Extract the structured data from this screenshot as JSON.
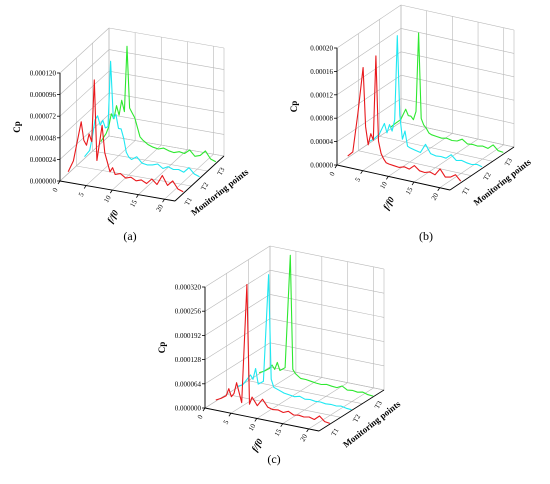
{
  "chart_data": [
    {
      "type": "line",
      "panel_label": "(a)",
      "ylabel": "Cp",
      "xlabel": "f/f0",
      "zlabel": "Monitoring points",
      "ylim": [
        0,
        0.00012
      ],
      "yticks": [
        "0.000000",
        "0.000024",
        "0.000048",
        "0.000072",
        "0.000096",
        "0.000120"
      ],
      "xticks": [
        "0",
        "5",
        "10",
        "15",
        "20"
      ],
      "zticks": [
        "T1",
        "T2",
        "T3"
      ],
      "colors": [
        "#e8181c",
        "#1ee8f2",
        "#2ee830"
      ],
      "series": [
        {
          "name": "T1",
          "x": [
            0,
            1,
            1.5,
            2,
            2.5,
            3,
            3.5,
            4,
            4.5,
            5,
            5.5,
            6,
            6.5,
            7,
            7.5,
            8,
            8.5,
            9,
            10,
            11,
            12,
            13,
            14,
            15,
            16,
            17,
            18,
            19,
            20,
            21,
            22
          ],
          "values": [
            2e-06,
            1.5e-05,
            3e-05,
            4.5e-05,
            6e-05,
            4e-05,
            3.5e-05,
            4.8e-05,
            4e-05,
            0.000109,
            2e-05,
            4e-05,
            6e-05,
            3e-05,
            2e-05,
            1e-05,
            1.5e-05,
            8e-06,
            1e-05,
            6e-06,
            8e-06,
            5e-06,
            7e-06,
            4e-06,
            1e-05,
            5e-06,
            1.6e-05,
            6e-06,
            1.2e-05,
            4e-06,
            2e-06
          ]
        },
        {
          "name": "T2",
          "x": [
            0,
            1,
            1.5,
            2,
            2.5,
            3,
            3.5,
            4,
            4.5,
            5,
            5.5,
            6,
            6.5,
            7,
            7.5,
            8,
            8.5,
            9,
            10,
            11,
            12,
            13,
            14,
            15,
            16,
            17,
            18,
            19,
            20,
            21,
            22
          ],
          "values": [
            2e-06,
            1e-05,
            2.5e-05,
            4.5e-05,
            5e-05,
            4e-05,
            4.6e-05,
            3.8e-05,
            4e-05,
            0.000113,
            5e-05,
            5.5e-05,
            4e-05,
            4e-05,
            3e-05,
            1.5e-05,
            1e-05,
            8e-06,
            1.2e-05,
            6e-06,
            5e-06,
            6e-06,
            8e-06,
            4e-06,
            7e-06,
            5e-06,
            6e-06,
            4e-06,
            1e-05,
            4e-06,
            2e-06
          ]
        },
        {
          "name": "T3",
          "x": [
            0,
            1,
            1.5,
            2,
            2.5,
            3,
            3.5,
            4,
            4.5,
            5,
            5.5,
            6,
            6.5,
            7,
            7.5,
            8,
            8.5,
            9,
            10,
            11,
            12,
            13,
            14,
            15,
            16,
            17,
            18,
            19,
            20,
            21,
            22
          ],
          "values": [
            2e-06,
            1.2e-05,
            2e-05,
            3.5e-05,
            3e-05,
            4.5e-05,
            3.5e-05,
            5.2e-05,
            4e-05,
            0.000113,
            4.5e-05,
            4e-05,
            3.5e-05,
            2.5e-05,
            1.5e-05,
            1.2e-05,
            1e-05,
            8e-06,
            6e-06,
            5e-06,
            7e-06,
            5e-06,
            4e-06,
            6e-06,
            5e-06,
            1e-05,
            4e-06,
            6e-06,
            1.2e-05,
            4e-06,
            2e-06
          ]
        }
      ]
    },
    {
      "type": "line",
      "panel_label": "(b)",
      "ylabel": "Cp",
      "xlabel": "f/f0",
      "zlabel": "Monitoring points",
      "ylim": [
        0,
        0.0002
      ],
      "yticks": [
        "0.00000",
        "0.00004",
        "0.00008",
        "0.00012",
        "0.00016",
        "0.00020"
      ],
      "xticks": [
        "0",
        "5",
        "10",
        "15",
        "20"
      ],
      "zticks": [
        "T1",
        "T2",
        "T3"
      ],
      "colors": [
        "#e8181c",
        "#1ee8f2",
        "#2ee830"
      ],
      "series": [
        {
          "name": "T1",
          "x": [
            0,
            1,
            2,
            3,
            3.5,
            4,
            4.5,
            5,
            5.5,
            6,
            6.5,
            7,
            7.5,
            8,
            9,
            10,
            11,
            12,
            13,
            14,
            15,
            16,
            17,
            18,
            19,
            20,
            21,
            22
          ],
          "values": [
            3e-06,
            1.2e-05,
            8e-05,
            0.00016,
            6e-05,
            3e-05,
            5e-05,
            4e-05,
            0.000185,
            4e-05,
            2e-05,
            1.2e-05,
            6e-06,
            5e-06,
            4e-06,
            3e-06,
            6e-06,
            4e-06,
            1.2e-05,
            5e-06,
            4e-06,
            7e-06,
            4e-06,
            1.6e-05,
            4e-06,
            6e-06,
            1.2e-05,
            3e-06
          ]
        },
        {
          "name": "T2",
          "x": [
            0,
            1,
            2,
            3,
            3.5,
            4,
            4.5,
            5,
            5.5,
            6,
            6.5,
            7,
            7.5,
            8,
            9,
            10,
            11,
            12,
            13,
            14,
            15,
            16,
            17,
            18,
            19,
            20,
            21,
            22
          ],
          "values": [
            3e-06,
            1e-05,
            2e-05,
            4e-05,
            2.5e-05,
            4e-05,
            3e-05,
            5e-05,
            0.000195,
            6e-05,
            2e-05,
            3.5e-05,
            1e-05,
            8e-06,
            6e-06,
            4e-06,
            2e-05,
            6e-06,
            4e-06,
            5e-06,
            4e-06,
            1.2e-05,
            4e-06,
            6e-06,
            4e-06,
            3e-06,
            5e-06,
            3e-06
          ]
        },
        {
          "name": "T3",
          "x": [
            0,
            1,
            2,
            3,
            3.5,
            4,
            4.5,
            5,
            5.5,
            6,
            6.5,
            7,
            7.5,
            8,
            9,
            10,
            11,
            12,
            13,
            14,
            15,
            16,
            17,
            18,
            19,
            20,
            21,
            22
          ],
          "values": [
            3e-06,
            1.2e-05,
            2e-05,
            4e-05,
            3e-05,
            3e-05,
            2.5e-05,
            4e-05,
            0.000175,
            3e-05,
            2e-05,
            1.5e-05,
            8e-06,
            6e-06,
            5e-06,
            4e-06,
            6e-06,
            4e-06,
            5e-06,
            1e-05,
            4e-06,
            5e-06,
            4e-06,
            6e-06,
            4e-06,
            1.2e-05,
            4e-06,
            3e-06
          ]
        }
      ]
    },
    {
      "type": "line",
      "panel_label": "(c)",
      "ylabel": "Cp",
      "xlabel": "f/f0",
      "zlabel": "Monitoring points",
      "ylim": [
        0,
        0.00032
      ],
      "yticks": [
        "0.000000",
        "0.000064",
        "0.000128",
        "0.000192",
        "0.000256",
        "0.000320"
      ],
      "xticks": [
        "0",
        "5",
        "10",
        "15",
        "20"
      ],
      "zticks": [
        "T1",
        "T2",
        "T3"
      ],
      "colors": [
        "#e8181c",
        "#1ee8f2",
        "#2ee830"
      ],
      "series": [
        {
          "name": "T1",
          "x": [
            0,
            1,
            2,
            2.5,
            3,
            3.5,
            4,
            5,
            6,
            6.5,
            7,
            8,
            9,
            10,
            11,
            12,
            13,
            14,
            15,
            16,
            17,
            18,
            19,
            20,
            21,
            22
          ],
          "values": [
            3e-06,
            1e-05,
            2e-05,
            4e-05,
            2e-05,
            3e-05,
            6e-05,
            1e-05,
            0.000325,
            1e-05,
            3e-05,
            1e-05,
            3e-05,
            1.2e-05,
            8e-06,
            1e-05,
            6e-06,
            1.2e-05,
            5e-06,
            7e-06,
            5e-06,
            8e-06,
            4e-06,
            1.6e-05,
            4e-06,
            2e-06
          ]
        },
        {
          "name": "T2",
          "x": [
            0,
            1,
            2,
            2.5,
            3,
            3.5,
            4,
            5,
            6,
            6.5,
            7,
            8,
            9,
            10,
            11,
            12,
            13,
            14,
            15,
            16,
            17,
            18,
            19,
            20,
            21,
            22
          ],
          "values": [
            3e-06,
            1e-05,
            3e-05,
            4e-05,
            3e-05,
            6e-05,
            2e-05,
            3e-05,
            0.000315,
            4e-05,
            2e-05,
            1.5e-05,
            1e-05,
            8e-06,
            6e-06,
            1e-05,
            5e-06,
            7e-06,
            5e-06,
            6e-06,
            4e-06,
            5e-06,
            4e-06,
            6e-06,
            3e-06,
            2e-06
          ]
        },
        {
          "name": "T3",
          "x": [
            0,
            1,
            2,
            2.5,
            3,
            3.5,
            4,
            5,
            6,
            6.5,
            7,
            8,
            9,
            10,
            11,
            12,
            13,
            14,
            15,
            16,
            17,
            18,
            19,
            20,
            21,
            22
          ],
          "values": [
            3e-06,
            1e-05,
            2e-05,
            3e-05,
            2e-05,
            4e-05,
            2e-05,
            3e-05,
            0.00033,
            3e-05,
            2e-05,
            1e-05,
            1e-05,
            8e-06,
            6e-06,
            5e-06,
            8e-06,
            6e-06,
            5e-06,
            1.2e-05,
            4e-06,
            6e-06,
            4e-06,
            7e-06,
            3e-06,
            2e-06
          ]
        }
      ]
    }
  ]
}
